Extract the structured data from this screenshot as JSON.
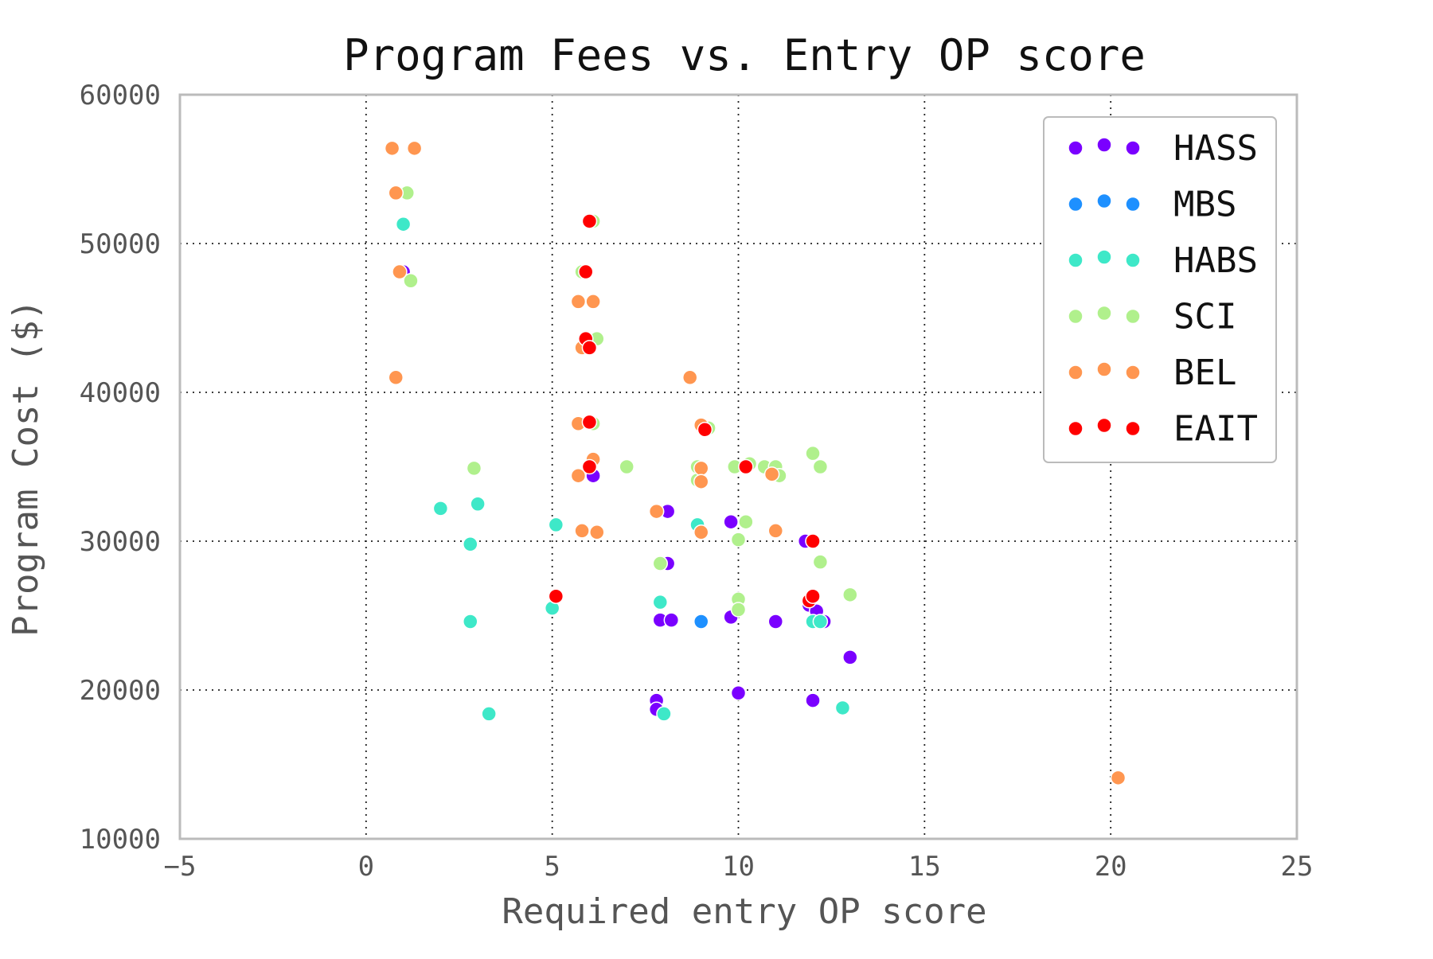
{
  "chart_data": {
    "type": "scatter",
    "title": "Program Fees vs. Entry OP score",
    "xlabel": "Required entry OP score",
    "ylabel": "Program Cost ($)",
    "xlim": [
      -5,
      25
    ],
    "ylim": [
      10000,
      60000
    ],
    "xticks": [
      -5,
      0,
      5,
      10,
      15,
      20,
      25
    ],
    "yticks": [
      10000,
      20000,
      30000,
      40000,
      50000,
      60000
    ],
    "xtick_labels": [
      "−5",
      "0",
      "5",
      "10",
      "15",
      "20",
      "25"
    ],
    "ytick_labels": [
      "10000",
      "20000",
      "30000",
      "40000",
      "50000",
      "60000"
    ],
    "grid": true,
    "legend_position": "top-right",
    "series": [
      {
        "name": "HASS",
        "color": "#7a00ff",
        "points": [
          [
            1.0,
            48100
          ],
          [
            6.1,
            35500
          ],
          [
            6.1,
            34400
          ],
          [
            8.1,
            32000
          ],
          [
            8.1,
            28500
          ],
          [
            7.9,
            24700
          ],
          [
            8.2,
            24700
          ],
          [
            9.8,
            31300
          ],
          [
            9.8,
            24900
          ],
          [
            11.0,
            24600
          ],
          [
            11.9,
            25700
          ],
          [
            12.1,
            25300
          ],
          [
            12.3,
            24600
          ],
          [
            13.0,
            22200
          ],
          [
            7.8,
            19300
          ],
          [
            7.8,
            18700
          ],
          [
            10.0,
            19800
          ],
          [
            12.0,
            19300
          ],
          [
            8.9,
            34100
          ],
          [
            11.8,
            30000
          ],
          [
            7.8,
            32000
          ]
        ]
      },
      {
        "name": "MBS",
        "color": "#1e90ff",
        "points": [
          [
            9.0,
            24600
          ]
        ]
      },
      {
        "name": "HABS",
        "color": "#3ee8c8",
        "points": [
          [
            1.0,
            51300
          ],
          [
            2.0,
            32200
          ],
          [
            3.0,
            32500
          ],
          [
            2.8,
            29800
          ],
          [
            2.8,
            24600
          ],
          [
            3.3,
            18400
          ],
          [
            5.1,
            31100
          ],
          [
            5.0,
            25500
          ],
          [
            7.9,
            25900
          ],
          [
            8.0,
            18400
          ],
          [
            8.9,
            31100
          ],
          [
            12.0,
            24600
          ],
          [
            12.2,
            24600
          ],
          [
            12.8,
            18800
          ]
        ]
      },
      {
        "name": "SCI",
        "color": "#b0f08c",
        "points": [
          [
            1.1,
            53400
          ],
          [
            1.2,
            47500
          ],
          [
            2.9,
            34900
          ],
          [
            5.8,
            48100
          ],
          [
            6.2,
            43600
          ],
          [
            6.1,
            37900
          ],
          [
            6.1,
            51500
          ],
          [
            7.0,
            35000
          ],
          [
            7.9,
            28500
          ],
          [
            8.9,
            35000
          ],
          [
            8.9,
            34100
          ],
          [
            9.2,
            37600
          ],
          [
            9.9,
            35000
          ],
          [
            10.0,
            30100
          ],
          [
            10.0,
            26100
          ],
          [
            10.0,
            25400
          ],
          [
            10.2,
            31300
          ],
          [
            10.3,
            35200
          ],
          [
            10.7,
            35000
          ],
          [
            11.0,
            35000
          ],
          [
            11.1,
            34400
          ],
          [
            12.0,
            35900
          ],
          [
            12.2,
            35000
          ],
          [
            12.2,
            28600
          ],
          [
            13.0,
            26400
          ],
          [
            12.0,
            30000
          ]
        ]
      },
      {
        "name": "BEL",
        "color": "#ff9650",
        "points": [
          [
            0.7,
            56400
          ],
          [
            1.3,
            56400
          ],
          [
            0.8,
            53400
          ],
          [
            0.9,
            48100
          ],
          [
            0.8,
            41000
          ],
          [
            5.7,
            46100
          ],
          [
            6.1,
            46100
          ],
          [
            5.8,
            43000
          ],
          [
            5.7,
            37900
          ],
          [
            6.1,
            35500
          ],
          [
            5.7,
            34400
          ],
          [
            5.8,
            30700
          ],
          [
            6.2,
            30600
          ],
          [
            7.8,
            32000
          ],
          [
            8.7,
            41000
          ],
          [
            9.0,
            37800
          ],
          [
            9.0,
            34900
          ],
          [
            9.0,
            34000
          ],
          [
            9.0,
            30600
          ],
          [
            10.9,
            34500
          ],
          [
            11.0,
            30700
          ],
          [
            20.2,
            14100
          ]
        ]
      },
      {
        "name": "EAIT",
        "color": "#ff0000",
        "points": [
          [
            6.0,
            51500
          ],
          [
            5.9,
            48100
          ],
          [
            5.9,
            43600
          ],
          [
            6.0,
            43000
          ],
          [
            6.0,
            38000
          ],
          [
            6.0,
            35000
          ],
          [
            5.1,
            26300
          ],
          [
            9.1,
            37500
          ],
          [
            10.2,
            35000
          ],
          [
            12.0,
            30000
          ],
          [
            11.9,
            26000
          ],
          [
            12.0,
            26300
          ]
        ]
      }
    ]
  }
}
